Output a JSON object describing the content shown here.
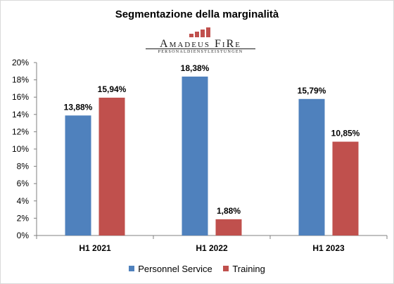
{
  "chart_data": {
    "type": "bar",
    "title": "Segmentazione della marginalità",
    "logo": {
      "name": "Amadeus FiRe",
      "tagline": "PERSONALDIENSTLEISTUNGEN"
    },
    "categories": [
      "H1 2021",
      "H1 2022",
      "H1 2023"
    ],
    "series": [
      {
        "name": "Personnel Service",
        "color": "#4f81bd",
        "values": [
          13.88,
          18.38,
          15.79
        ],
        "labels": [
          "13,88%",
          "18,38%",
          "15,79%"
        ]
      },
      {
        "name": "Training",
        "color": "#c0504d",
        "values": [
          15.94,
          1.88,
          10.85
        ],
        "labels": [
          "15,94%",
          "1,88%",
          "10,85%"
        ]
      }
    ],
    "ylim": [
      0,
      20
    ],
    "yticks": [
      "0%",
      "2%",
      "4%",
      "6%",
      "8%",
      "10%",
      "12%",
      "14%",
      "16%",
      "18%",
      "20%"
    ],
    "xlabel": "",
    "ylabel": "",
    "grid": false,
    "legend_position": "bottom"
  }
}
